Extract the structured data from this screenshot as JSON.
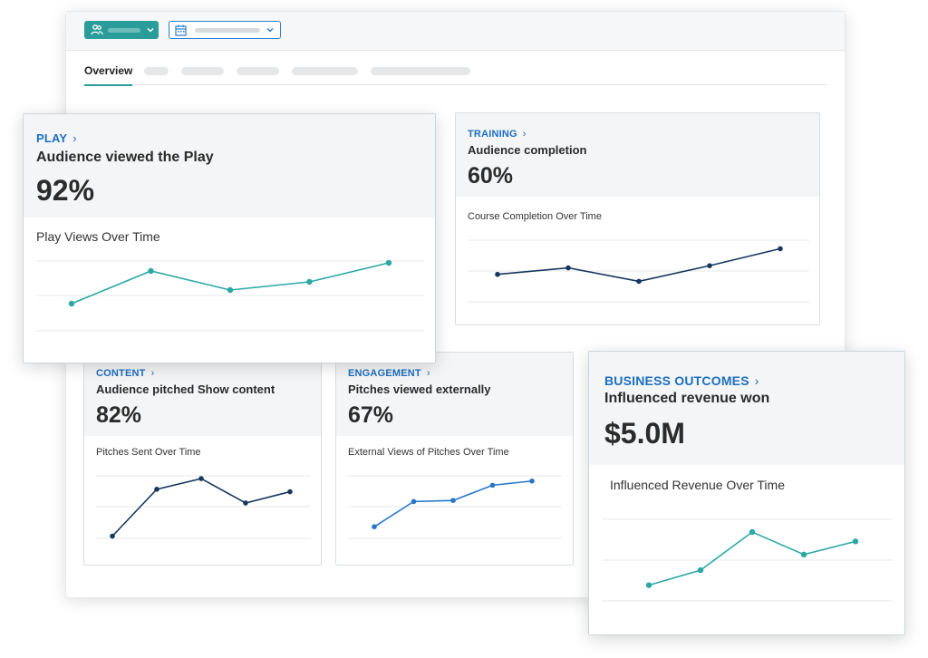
{
  "tabs": {
    "active": "Overview"
  },
  "cards": {
    "play": {
      "category": "PLAY",
      "title": "Audience viewed the Play",
      "value": "92%",
      "chart_title": "Play Views Over Time",
      "color": "#2aa8a4",
      "points": [
        0.2,
        0.8,
        0.45,
        0.6,
        0.95
      ]
    },
    "training": {
      "category": "TRAINING",
      "title": "Audience completion",
      "value": "60%",
      "chart_title": "Course Completion Over Time",
      "color": "#17375e",
      "points": [
        0.36,
        0.51,
        0.2,
        0.56,
        0.95
      ]
    },
    "content": {
      "category": "CONTENT",
      "title": "Audience pitched Show content",
      "value": "82%",
      "chart_title": "Pitches Sent Over Time",
      "color": "#17375e",
      "points": [
        0.05,
        0.8,
        0.97,
        0.58,
        0.76
      ]
    },
    "engagement": {
      "category": "ENGAGEMENT",
      "title": "Pitches viewed externally",
      "value": "67%",
      "chart_title": "External Views of Pitches Over Time",
      "color": "#2576c9",
      "points": [
        0.1,
        0.58,
        0.6,
        0.89,
        0.97
      ]
    },
    "business": {
      "category": "BUSINESS OUTCOMES",
      "title": "Influenced revenue won",
      "value": "$5.0M",
      "chart_title": "Influenced Revenue Over Time",
      "color": "#2aa8a4",
      "points": [
        0.15,
        0.39,
        1.0,
        0.64,
        0.85
      ]
    }
  },
  "chart_data": [
    {
      "type": "line",
      "title": "Play Views Over Time",
      "values": [
        0.2,
        0.8,
        0.45,
        0.6,
        0.95
      ]
    },
    {
      "type": "line",
      "title": "Course Completion Over Time",
      "values": [
        0.36,
        0.51,
        0.2,
        0.56,
        0.95
      ]
    },
    {
      "type": "line",
      "title": "Pitches Sent Over Time",
      "values": [
        0.05,
        0.8,
        0.97,
        0.58,
        0.76
      ]
    },
    {
      "type": "line",
      "title": "External Views of Pitches Over Time",
      "values": [
        0.1,
        0.58,
        0.6,
        0.89,
        0.97
      ]
    },
    {
      "type": "line",
      "title": "Influenced Revenue Over Time",
      "values": [
        0.15,
        0.39,
        1.0,
        0.64,
        0.85
      ]
    }
  ]
}
